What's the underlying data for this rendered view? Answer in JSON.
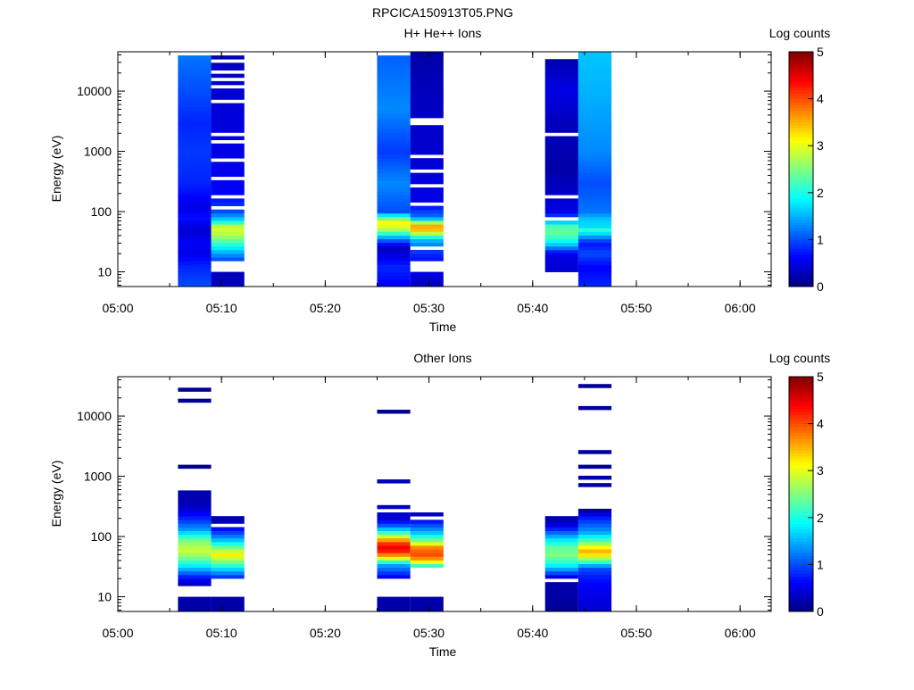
{
  "page_title": "RPCICA150913T05.PNG",
  "chart_data": [
    {
      "type": "heatmap",
      "title": "H+ He++ Ions",
      "xlabel": "Time",
      "ylabel": "Energy (eV)",
      "x_ticks": [
        "05:00",
        "05:10",
        "05:20",
        "05:30",
        "05:40",
        "05:50",
        "06:00"
      ],
      "x_range": [
        "05:00",
        "06:03"
      ],
      "y_scale": "log",
      "y_ticks": [
        10,
        100,
        1000,
        10000
      ],
      "y_range": [
        5.7,
        45000
      ],
      "colorbar": {
        "label": "Log counts",
        "min": 0,
        "max": 5,
        "ticks": [
          0,
          1,
          2,
          3,
          4,
          5
        ]
      },
      "grid": false,
      "columns": [
        {
          "t_start": "05:05.8",
          "t_end": "05:09.0",
          "profile": [
            [
              6,
              1.0
            ],
            [
              12,
              0.8
            ],
            [
              22,
              0.5
            ],
            [
              30,
              0.6
            ],
            [
              50,
              0.4
            ],
            [
              80,
              0.7
            ],
            [
              120,
              0.5
            ],
            [
              300,
              0.8
            ],
            [
              1000,
              0.9
            ],
            [
              3000,
              0.8
            ],
            [
              10000,
              1.0
            ],
            [
              40000,
              1.2
            ]
          ],
          "gaps": []
        },
        {
          "t_start": "05:09.0",
          "t_end": "05:12.2",
          "profile": [
            [
              6,
              0.3
            ],
            [
              10,
              0.3
            ],
            [
              16,
              1.0
            ],
            [
              25,
              1.8
            ],
            [
              40,
              2.7
            ],
            [
              55,
              3.0
            ],
            [
              70,
              1.8
            ],
            [
              100,
              1.0
            ],
            [
              200,
              0.6
            ],
            [
              1000,
              0.5
            ],
            [
              10000,
              0.4
            ],
            [
              38000,
              0.3
            ]
          ],
          "gaps": [
            [
              9.5,
              15
            ],
            [
              110,
              125
            ],
            [
              135,
              150
            ],
            [
              160,
              180
            ],
            [
              330,
              360
            ],
            [
              420,
              470
            ],
            [
              700,
              780
            ],
            [
              1400,
              1550
            ],
            [
              1750,
              1950
            ],
            [
              2300,
              2500
            ],
            [
              4000,
              4400
            ],
            [
              6500,
              7200
            ],
            [
              11000,
              12500
            ],
            [
              15000,
              16500
            ],
            [
              19000,
              21000
            ],
            [
              24000,
              26500
            ],
            [
              29000,
              32000
            ]
          ]
        },
        {
          "t_start": "05:25.0",
          "t_end": "05:28.2",
          "profile": [
            [
              6,
              0.6
            ],
            [
              12,
              0.8
            ],
            [
              25,
              0.3
            ],
            [
              35,
              1.2
            ],
            [
              50,
              2.7
            ],
            [
              65,
              3.2
            ],
            [
              80,
              2.3
            ],
            [
              100,
              1.0
            ],
            [
              300,
              1.3
            ],
            [
              1000,
              0.9
            ],
            [
              5000,
              1.3
            ],
            [
              40000,
              1.1
            ]
          ],
          "gaps": []
        },
        {
          "t_start": "05:28.2",
          "t_end": "05:31.4",
          "profile": [
            [
              6,
              0.3
            ],
            [
              10,
              0.5
            ],
            [
              20,
              0.8
            ],
            [
              35,
              1.6
            ],
            [
              45,
              3.0
            ],
            [
              55,
              3.8
            ],
            [
              65,
              2.8
            ],
            [
              80,
              1.2
            ],
            [
              150,
              0.5
            ],
            [
              1000,
              0.4
            ],
            [
              10000,
              0.3
            ],
            [
              45000,
              0.2
            ]
          ],
          "gaps": [
            [
              9.5,
              16
            ],
            [
              22,
              27
            ],
            [
              105,
              115
            ],
            [
              130,
              140
            ],
            [
              180,
              195
            ],
            [
              260,
              285
            ],
            [
              450,
              500
            ],
            [
              800,
              880
            ],
            [
              1300,
              1400
            ],
            [
              2800,
              3000
            ],
            [
              3300,
              3500
            ],
            [
              5200,
              5600
            ],
            [
              8000,
              8600
            ],
            [
              14000,
              15500
            ],
            [
              37000,
              39000
            ],
            [
              42000,
              45000
            ]
          ]
        },
        {
          "t_start": "05:41.2",
          "t_end": "05:44.4",
          "profile": [
            [
              10,
              0.4
            ],
            [
              20,
              0.5
            ],
            [
              30,
              1.8
            ],
            [
              45,
              2.4
            ],
            [
              60,
              2.2
            ],
            [
              70,
              1.4
            ],
            [
              100,
              0.5
            ],
            [
              500,
              0.2
            ],
            [
              3000,
              0.3
            ],
            [
              10000,
              0.5
            ],
            [
              40000,
              0.2
            ]
          ],
          "gaps": [
            [
              75,
              80
            ],
            [
              170,
              185
            ],
            [
              650,
              700
            ],
            [
              900,
              950
            ],
            [
              1500,
              1600
            ],
            [
              1800,
              1950
            ],
            [
              2600,
              2800
            ],
            [
              35000,
              40000
            ]
          ]
        },
        {
          "t_start": "05:44.4",
          "t_end": "05:47.6",
          "profile": [
            [
              6,
              0.8
            ],
            [
              12,
              0.6
            ],
            [
              20,
              1.0
            ],
            [
              30,
              0.7
            ],
            [
              40,
              1.5
            ],
            [
              50,
              2.1
            ],
            [
              60,
              1.6
            ],
            [
              70,
              1.7
            ],
            [
              100,
              1.2
            ],
            [
              300,
              1.0
            ],
            [
              1000,
              1.3
            ],
            [
              10000,
              1.5
            ],
            [
              45000,
              1.6
            ]
          ],
          "gaps": []
        }
      ]
    },
    {
      "type": "heatmap",
      "title": "Other Ions",
      "xlabel": "Time",
      "ylabel": "Energy (eV)",
      "x_ticks": [
        "05:00",
        "05:10",
        "05:20",
        "05:30",
        "05:40",
        "05:50",
        "06:00"
      ],
      "x_range": [
        "05:00",
        "06:03"
      ],
      "y_scale": "log",
      "y_ticks": [
        10,
        100,
        1000,
        10000
      ],
      "y_range": [
        5.7,
        45000
      ],
      "colorbar": {
        "label": "Log counts",
        "min": 0,
        "max": 5,
        "ticks": [
          0,
          1,
          2,
          3,
          4,
          5
        ]
      },
      "grid": false,
      "columns": [
        {
          "t_start": "05:05.8",
          "t_end": "05:09.0",
          "profile": [
            [
              6,
              0.2
            ],
            [
              10,
              0.2
            ],
            [
              16,
              0.3
            ],
            [
              22,
              0.8
            ],
            [
              30,
              1.6
            ],
            [
              45,
              2.5
            ],
            [
              60,
              2.9
            ],
            [
              90,
              2.4
            ],
            [
              130,
              1.4
            ],
            [
              200,
              0.8
            ],
            [
              320,
              0.3
            ],
            [
              600,
              0.2
            ],
            [
              1400,
              0.1
            ],
            [
              30000,
              0.1
            ]
          ],
          "gaps": [
            [
              9.5,
              15
            ],
            [
              360,
              410
            ],
            [
              620,
              1300
            ],
            [
              1450,
              17500
            ],
            [
              19500,
              21000
            ],
            [
              22500,
              27000
            ]
          ]
        },
        {
          "t_start": "05:09.0",
          "t_end": "05:12.2",
          "profile": [
            [
              6,
              0.2
            ],
            [
              10,
              0.2
            ],
            [
              20,
              0.7
            ],
            [
              30,
              1.8
            ],
            [
              40,
              2.6
            ],
            [
              50,
              3.2
            ],
            [
              65,
              2.5
            ],
            [
              90,
              1.5
            ],
            [
              130,
              0.7
            ],
            [
              200,
              0.2
            ]
          ],
          "gaps": [
            [
              9.5,
              20
            ],
            [
              150,
              170
            ]
          ]
        },
        {
          "t_start": "05:25.0",
          "t_end": "05:28.2",
          "profile": [
            [
              6,
              0.2
            ],
            [
              10,
              0.2
            ],
            [
              20,
              0.5
            ],
            [
              35,
              1.5
            ],
            [
              45,
              3.2
            ],
            [
              55,
              4.2
            ],
            [
              70,
              4.5
            ],
            [
              90,
              3.5
            ],
            [
              120,
              2.0
            ],
            [
              150,
              1.1
            ],
            [
              200,
              0.4
            ],
            [
              12000,
              0.1
            ]
          ],
          "gaps": [
            [
              9.5,
              20
            ],
            [
              210,
              220
            ],
            [
              240,
              290
            ],
            [
              330,
              760
            ],
            [
              840,
              11300
            ]
          ]
        },
        {
          "t_start": "05:28.2",
          "t_end": "05:31.4",
          "profile": [
            [
              6,
              0.2
            ],
            [
              10,
              0.2
            ],
            [
              32,
              2.0
            ],
            [
              40,
              3.5
            ],
            [
              50,
              4.0
            ],
            [
              65,
              3.8
            ],
            [
              85,
              2.5
            ],
            [
              120,
              1.5
            ],
            [
              180,
              0.7
            ],
            [
              250,
              0.2
            ]
          ],
          "gaps": [
            [
              9.5,
              31
            ],
            [
              190,
              215
            ]
          ]
        },
        {
          "t_start": "05:41.2",
          "t_end": "05:44.4",
          "profile": [
            [
              6,
              0.1
            ],
            [
              10,
              0.2
            ],
            [
              15,
              0.2
            ],
            [
              20,
              0.3
            ],
            [
              25,
              1.0
            ],
            [
              35,
              2.0
            ],
            [
              50,
              2.5
            ],
            [
              70,
              2.3
            ],
            [
              100,
              1.5
            ],
            [
              150,
              0.5
            ],
            [
              200,
              0.2
            ]
          ],
          "gaps": [
            [
              17,
              19
            ]
          ]
        },
        {
          "t_start": "05:44.4",
          "t_end": "05:47.6",
          "profile": [
            [
              6,
              0.4
            ],
            [
              10,
              0.5
            ],
            [
              15,
              0.6
            ],
            [
              20,
              0.7
            ],
            [
              30,
              1.0
            ],
            [
              40,
              2.4
            ],
            [
              55,
              3.6
            ],
            [
              70,
              3.0
            ],
            [
              90,
              2.1
            ],
            [
              120,
              1.4
            ],
            [
              200,
              0.8
            ],
            [
              270,
              0.2
            ],
            [
              35000,
              0.1
            ]
          ],
          "gaps": [
            [
              280,
              700
            ],
            [
              760,
              900
            ],
            [
              1000,
              1300
            ],
            [
              1450,
              2500
            ],
            [
              2800,
              12500
            ],
            [
              14000,
              31000
            ]
          ]
        }
      ]
    }
  ]
}
